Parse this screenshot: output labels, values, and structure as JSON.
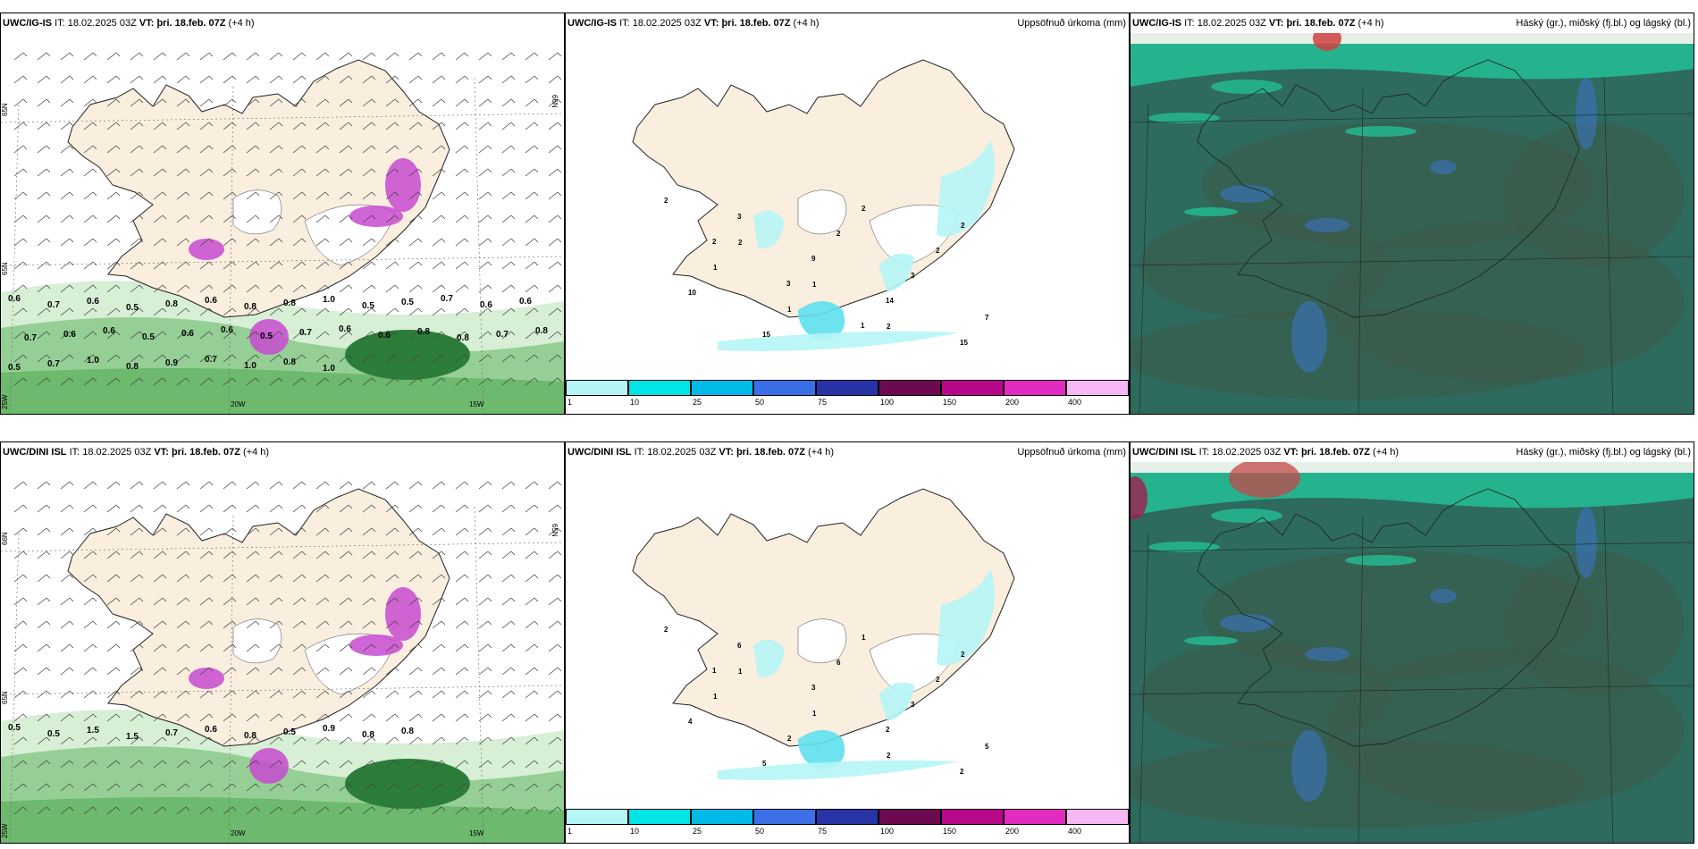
{
  "rows": [
    {
      "model": "UWC/IG-IS",
      "it_label": "IT:",
      "it_value": "18.02.2025 03Z",
      "vt_label": "VT:",
      "vt_value": "þri. 18.feb. 07Z",
      "lead": "(+4 h)",
      "precip_title": "Uppsöfnuð úrkoma (mm)",
      "cloud_title": "Háský (gr.), miðský (fj.bl.) og lágský (bl.)",
      "wind_values": [
        "0.6",
        "0.7",
        "0.6",
        "0.5",
        "0.8",
        "0.6",
        "0.8",
        "0.8",
        "1.0",
        "0.5",
        "0.5",
        "0.7",
        "0.6",
        "0.6",
        "0.7",
        "0.6",
        "0.6",
        "0.5",
        "0.6",
        "0.6",
        "0.5",
        "0.7",
        "0.6",
        "0.6",
        "0.8",
        "0.8",
        "0.7",
        "0.8",
        "0.5",
        "0.7",
        "1.0",
        "0.8",
        "0.9",
        "0.7",
        "1.0",
        "0.8",
        "1.0"
      ],
      "precip_labels": [
        "2",
        "2",
        "1",
        "2",
        "2",
        "1",
        "1",
        "2",
        "2",
        "10",
        "15",
        "2",
        "3",
        "7",
        "3",
        "9",
        "14",
        "15",
        "2",
        "3",
        "1"
      ],
      "grid_labels": [
        "65N",
        "65N",
        "66N",
        "25W",
        "20W",
        "15W"
      ]
    },
    {
      "model": "UWC/DINI ISL",
      "it_label": "IT:",
      "it_value": "18.02.2025 03Z",
      "vt_label": "VT:",
      "vt_value": "þri. 18.feb. 07Z",
      "lead": "(+4 h)",
      "precip_title": "Uppsöfnuð úrkoma (mm)",
      "cloud_title": "Háský (gr.), miðský (fj.bl.) og lágský (bl.)",
      "wind_values": [
        "0.5",
        "0.5",
        "1.5",
        "1.5",
        "0.7",
        "0.6",
        "0.8",
        "0.5",
        "0.9",
        "0.8",
        "0.8"
      ],
      "precip_labels": [
        "2",
        "1",
        "1",
        "2",
        "2",
        "1",
        "2",
        "1",
        "2",
        "4",
        "5",
        "6",
        "3",
        "5",
        "6",
        "3",
        "2",
        "2",
        "1"
      ],
      "grid_labels": [
        "66N",
        "65N",
        "65N",
        "25W",
        "20W",
        "15W"
      ]
    }
  ],
  "colorbar": {
    "labels": [
      "1",
      "10",
      "25",
      "50",
      "75",
      "100",
      "150",
      "200",
      "400"
    ],
    "colors": [
      "#b5f5f5",
      "#00e5e5",
      "#00bbe8",
      "#3a6fe8",
      "#2833a8",
      "#6b0a4e",
      "#b8088a",
      "#e22bbf",
      "#f5b8f5"
    ]
  },
  "palette": {
    "land": "#faeedf",
    "precip_light": "#b5f5f5",
    "precip_mid": "#5ee0ee",
    "wind_green_light": "#d7efd5",
    "wind_green_mid": "#95cf95",
    "wind_green_dark": "#2d7d3a",
    "magenta": "#c84ad0",
    "cloud_base": "#2e6a5e",
    "cloud_teal": "#23c49a",
    "cloud_dark": "#3d5a48"
  }
}
